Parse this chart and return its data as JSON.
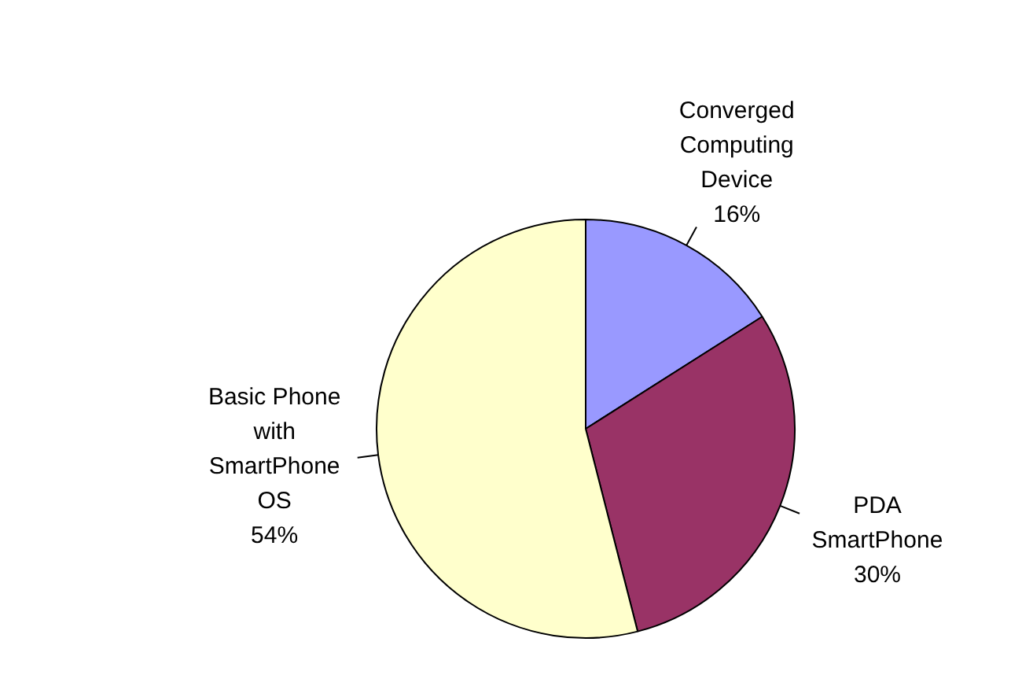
{
  "chart_data": {
    "type": "pie",
    "categories": [
      "Converged Computing Device",
      "PDA SmartPhone",
      "Basic Phone with SmartPhone OS"
    ],
    "values": [
      16,
      30,
      54
    ],
    "value_labels": [
      "16%",
      "30%",
      "54%"
    ],
    "colors": [
      "#9999ff",
      "#993366",
      "#ffffcc"
    ],
    "legend": false
  }
}
